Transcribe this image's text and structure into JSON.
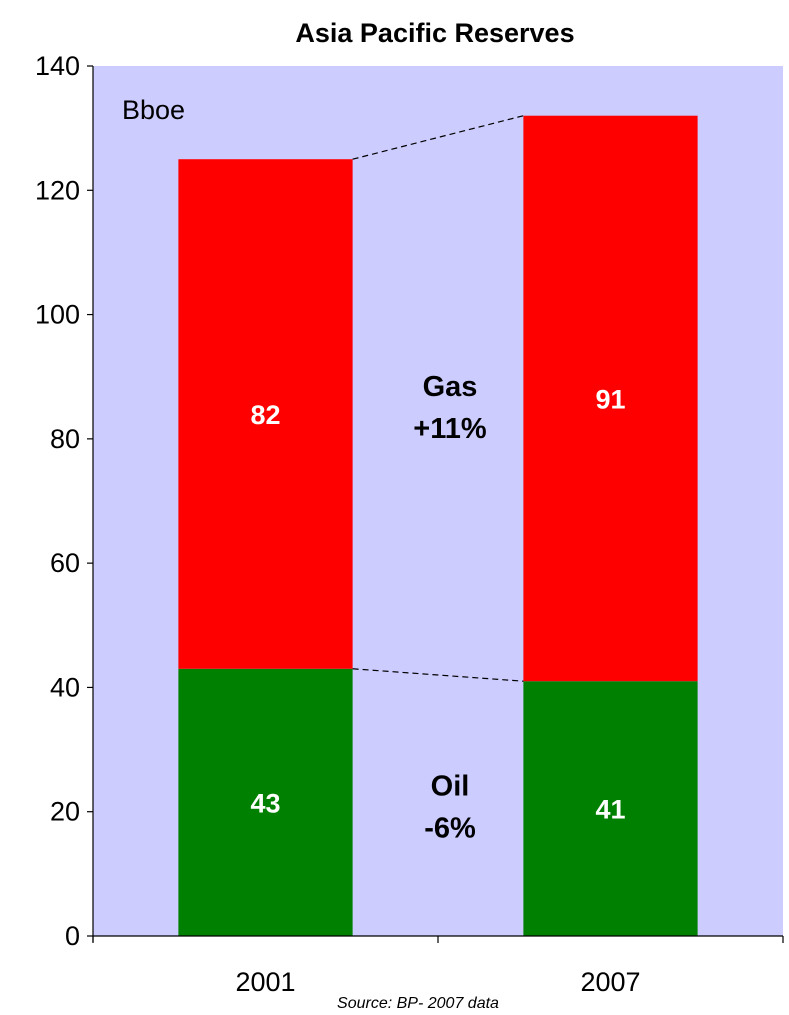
{
  "chart_data": {
    "type": "bar",
    "stacked": true,
    "title": "Asia Pacific Reserves",
    "unit_label": "Bboe",
    "source": "Source: BP- 2007 data",
    "categories": [
      "2001",
      "2007"
    ],
    "series": [
      {
        "name": "Oil",
        "values": [
          43,
          41
        ],
        "labels": [
          "43",
          "41"
        ],
        "color": "#008000"
      },
      {
        "name": "Gas",
        "values": [
          82,
          91
        ],
        "labels": [
          "82",
          "91"
        ],
        "color": "#ff0000"
      }
    ],
    "annotations": [
      {
        "series": "Gas",
        "line1": "Gas",
        "line2": "+11%"
      },
      {
        "series": "Oil",
        "line1": "Oil",
        "line2": "-6%"
      }
    ],
    "ylim": [
      0,
      140
    ],
    "yticks": [
      0,
      20,
      40,
      60,
      80,
      100,
      120,
      140
    ],
    "plot_background": "#ccccff",
    "grid": false,
    "connector_lines": "dashed"
  }
}
